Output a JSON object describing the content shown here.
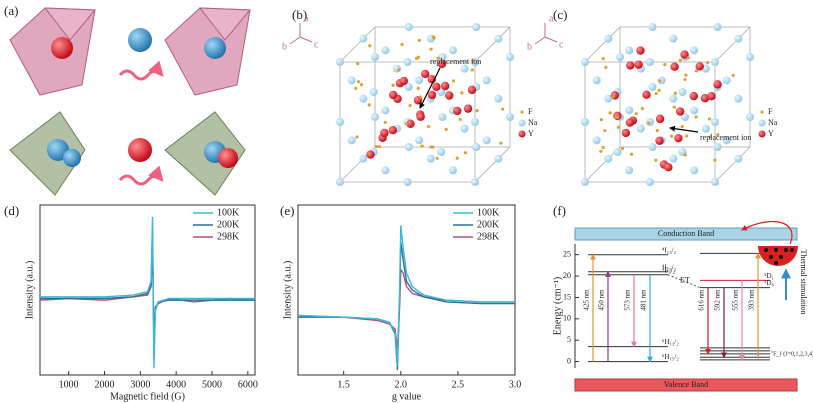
{
  "panels": {
    "a": "(a)",
    "b": "(b)",
    "c": "(c)",
    "d": "(d)",
    "e": "(e)",
    "f": "(f)"
  },
  "structure_b": {
    "axes": [
      "a",
      "b",
      "c"
    ],
    "annotation": "replacement ion",
    "legend": [
      "F",
      "Na",
      "Y"
    ]
  },
  "structure_c": {
    "axes": [
      "a",
      "b",
      "c"
    ],
    "annotation": "replacement ion",
    "legend": [
      "F",
      "Na",
      "Y"
    ]
  },
  "chart_data": [
    {
      "type": "line",
      "xlabel": "Magnetic field (G)",
      "ylabel": "Intensity (a.u.)",
      "x": [
        200,
        1000,
        2000,
        2800,
        3200,
        3300,
        3340,
        3360,
        3380,
        3420,
        3500,
        3800,
        4500,
        5500,
        6200
      ],
      "xlim": [
        200,
        6200
      ],
      "xticks": [
        1000,
        2000,
        3000,
        4000,
        5000,
        6000
      ],
      "ylim": [
        0,
        1
      ],
      "legend": "upper right",
      "series": [
        {
          "name": "100K",
          "color": "#3bb8d8",
          "values": [
            0.46,
            0.46,
            0.46,
            0.47,
            0.49,
            0.55,
            0.93,
            0.55,
            0.04,
            0.38,
            0.43,
            0.45,
            0.45,
            0.45,
            0.45
          ]
        },
        {
          "name": "200K",
          "color": "#2f6f9a",
          "values": [
            0.45,
            0.45,
            0.45,
            0.46,
            0.48,
            0.53,
            0.85,
            0.5,
            0.1,
            0.39,
            0.43,
            0.44,
            0.44,
            0.44,
            0.44
          ]
        },
        {
          "name": "298K",
          "color": "#b0507a",
          "values": [
            0.44,
            0.45,
            0.44,
            0.46,
            0.47,
            0.52,
            0.75,
            0.5,
            0.2,
            0.4,
            0.42,
            0.45,
            0.43,
            0.45,
            0.44
          ]
        }
      ]
    },
    {
      "type": "line",
      "xlabel": "g value",
      "ylabel": "Intensity (a.u.)",
      "x": [
        1.1,
        1.5,
        1.8,
        1.9,
        1.95,
        1.97,
        1.99,
        2.0,
        2.02,
        2.05,
        2.1,
        2.2,
        2.4,
        2.7,
        3.0
      ],
      "xlim": [
        1.1,
        3.0
      ],
      "xticks": [
        1.5,
        {
          "value": 2,
          "label": "2.0"
        },
        2.5,
        {
          "value": 3,
          "label": "3.0"
        }
      ],
      "ylim": [
        0,
        1
      ],
      "legend": "upper right",
      "series": [
        {
          "name": "100K",
          "color": "#3bb8d8",
          "values": [
            0.35,
            0.34,
            0.33,
            0.31,
            0.25,
            0.05,
            0.5,
            0.88,
            0.75,
            0.6,
            0.52,
            0.47,
            0.44,
            0.43,
            0.43
          ]
        },
        {
          "name": "200K",
          "color": "#2f6f9a",
          "values": [
            0.34,
            0.34,
            0.33,
            0.31,
            0.24,
            0.03,
            0.45,
            0.78,
            0.68,
            0.55,
            0.5,
            0.46,
            0.43,
            0.42,
            0.42
          ]
        },
        {
          "name": "298K",
          "color": "#b0507a",
          "values": [
            0.35,
            0.34,
            0.32,
            0.3,
            0.27,
            0.15,
            0.4,
            0.62,
            0.6,
            0.52,
            0.48,
            0.46,
            0.44,
            0.43,
            0.43
          ]
        }
      ]
    },
    {
      "type": "energy-levels",
      "ylabel": "Energy (cm⁻¹)",
      "ylim": [
        -1.5,
        27.5
      ],
      "yticks": [
        0,
        5,
        10,
        15,
        20,
        25
      ],
      "bands": {
        "conduction": "Conduction Band",
        "valence": "Valence Band"
      },
      "levels_left": [
        {
          "label": "⁴I₁₃/₂",
          "value": 25
        },
        {
          "label": "⁴I₁₅/₂",
          "value": 21
        },
        {
          "label": "⁴F₉/₂",
          "value": 20.3
        },
        {
          "label": "⁶H₁₃/₂",
          "value": 3.5
        },
        {
          "label": "⁶H₁₅/₂",
          "value": 0
        }
      ],
      "levels_right": [
        {
          "label": "⁵L₆",
          "value": 25.3
        },
        {
          "label": "⁵D₁",
          "value": 19
        },
        {
          "label": "⁵D₀",
          "value": 17.3
        },
        {
          "label": "⁷F_J (J=0,1,2,3,4)",
          "values": [
            0.4,
            1,
            1.8,
            2.5,
            3.2
          ]
        }
      ],
      "transfer": "ET",
      "thermal": "Thermal stimulation",
      "transitions": [
        {
          "label": "425 nm",
          "from": 0,
          "to": 25,
          "color": "#e0953a"
        },
        {
          "label": "450 nm",
          "from": 0,
          "to": 21,
          "color": "#8a3a8a"
        },
        {
          "label": "573 nm",
          "from": 20.3,
          "to": 3.5,
          "color": "#e07aa0"
        },
        {
          "label": "481 nm",
          "from": 20.3,
          "to": 0,
          "color": "#3aa8d8"
        },
        {
          "label": "616 nm",
          "from": 17.3,
          "to": 1.8,
          "color": "#d02020"
        },
        {
          "label": "592 nm",
          "from": 17.3,
          "to": 1,
          "color": "#802030"
        },
        {
          "label": "555 nm",
          "from": 19,
          "to": 0.4,
          "color": "#e88aa0"
        },
        {
          "label": "393 nm",
          "from": 0.4,
          "to": 25.3,
          "color": "#e0953a"
        }
      ]
    }
  ]
}
